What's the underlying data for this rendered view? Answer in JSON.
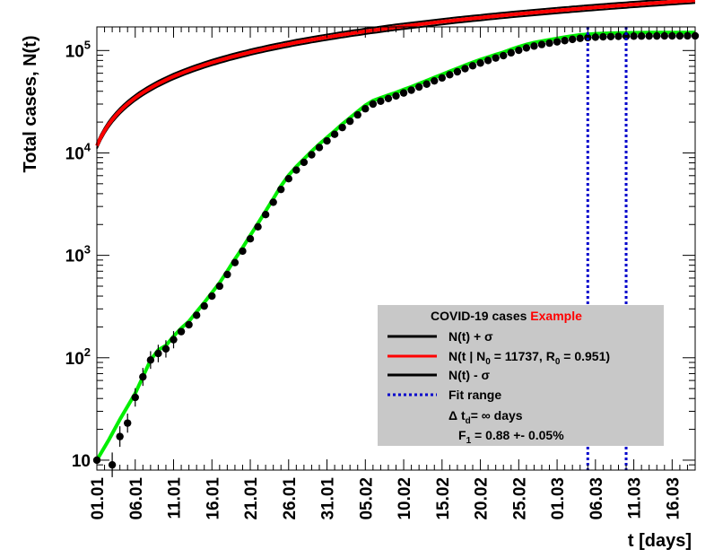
{
  "chart_data": {
    "type": "scatter",
    "y_scale": "log",
    "ylim": [
      8,
      170000
    ],
    "xlabel": "t [days]",
    "ylabel": "Total cases, N(t)",
    "x_tick_labels": [
      "01.01",
      "06.01",
      "11.01",
      "16.01",
      "21.01",
      "26.01",
      "31.01",
      "05.02",
      "10.02",
      "15.02",
      "20.02",
      "25.02",
      "01.03",
      "06.03",
      "11.03",
      "16.03"
    ],
    "y_tick_labels": [
      {
        "value": 10,
        "base": "10",
        "exp": ""
      },
      {
        "value": 100,
        "base": "10",
        "exp": "2"
      },
      {
        "value": 1000,
        "base": "10",
        "exp": "3"
      },
      {
        "value": 10000,
        "base": "10",
        "exp": "4"
      },
      {
        "value": 100000,
        "base": "10",
        "exp": "5"
      }
    ],
    "legend": {
      "title": "COVID-19 cases",
      "title_highlight": "Example",
      "entries": [
        {
          "kind": "line",
          "color": "#000000",
          "label": "N(t) + σ"
        },
        {
          "kind": "line",
          "color": "#ff0000",
          "label_pre": "N(t | N",
          "label_sub": "0",
          "label_mid": " = 11737, R",
          "label_sub2": "0",
          "label_post": " =  0.951)"
        },
        {
          "kind": "line",
          "color": "#000000",
          "label": "N(t) - σ"
        },
        {
          "kind": "dotted",
          "color": "#0000cc",
          "label": "Fit range"
        }
      ],
      "note1": {
        "pre": "Δ t",
        "sub": "d",
        "post": "= ∞ days"
      },
      "note2": {
        "pre": "F",
        "sub": "1",
        "post": " =  0.88 +- 0.05%"
      }
    },
    "fit_range": [
      64,
      69
    ],
    "model_curve": {
      "name": "N(t | N0 = 11737, R0 = 0.951)",
      "color": "#ff0000",
      "N0": 11737
    },
    "green_curve": {
      "color": "#00ee00"
    },
    "data_points": [
      {
        "day": 0,
        "value": 10
      },
      {
        "day": 2,
        "value": 9
      },
      {
        "day": 3,
        "value": 17
      },
      {
        "day": 4,
        "value": 23
      },
      {
        "day": 5,
        "value": 41
      },
      {
        "day": 6,
        "value": 65
      },
      {
        "day": 7,
        "value": 95
      },
      {
        "day": 8,
        "value": 110
      },
      {
        "day": 9,
        "value": 122
      },
      {
        "day": 10,
        "value": 150
      },
      {
        "day": 11,
        "value": 180
      },
      {
        "day": 12,
        "value": 210
      },
      {
        "day": 13,
        "value": 260
      },
      {
        "day": 14,
        "value": 320
      },
      {
        "day": 15,
        "value": 400
      },
      {
        "day": 16,
        "value": 500
      },
      {
        "day": 17,
        "value": 650
      },
      {
        "day": 18,
        "value": 850
      },
      {
        "day": 19,
        "value": 1100
      },
      {
        "day": 20,
        "value": 1450
      },
      {
        "day": 21,
        "value": 1900
      },
      {
        "day": 22,
        "value": 2500
      },
      {
        "day": 23,
        "value": 3300
      },
      {
        "day": 24,
        "value": 4400
      },
      {
        "day": 25,
        "value": 5600
      },
      {
        "day": 26,
        "value": 6800
      },
      {
        "day": 27,
        "value": 8100
      },
      {
        "day": 28,
        "value": 9600
      },
      {
        "day": 29,
        "value": 11300
      },
      {
        "day": 30,
        "value": 13100
      },
      {
        "day": 31,
        "value": 15200
      },
      {
        "day": 32,
        "value": 17700
      },
      {
        "day": 33,
        "value": 20400
      },
      {
        "day": 34,
        "value": 23500
      },
      {
        "day": 35,
        "value": 27000
      },
      {
        "day": 36,
        "value": 30000
      },
      {
        "day": 37,
        "value": 32000
      },
      {
        "day": 38,
        "value": 34000
      },
      {
        "day": 39,
        "value": 36000
      },
      {
        "day": 40,
        "value": 38500
      },
      {
        "day": 41,
        "value": 41000
      },
      {
        "day": 42,
        "value": 44000
      },
      {
        "day": 43,
        "value": 47000
      },
      {
        "day": 44,
        "value": 50500
      },
      {
        "day": 45,
        "value": 54000
      },
      {
        "day": 46,
        "value": 58000
      },
      {
        "day": 47,
        "value": 62000
      },
      {
        "day": 48,
        "value": 66500
      },
      {
        "day": 49,
        "value": 71000
      },
      {
        "day": 50,
        "value": 75500
      },
      {
        "day": 51,
        "value": 80000
      },
      {
        "day": 52,
        "value": 84500
      },
      {
        "day": 53,
        "value": 89000
      },
      {
        "day": 54,
        "value": 95000
      },
      {
        "day": 55,
        "value": 100500
      },
      {
        "day": 56,
        "value": 106000
      },
      {
        "day": 57,
        "value": 110500
      },
      {
        "day": 58,
        "value": 114500
      },
      {
        "day": 59,
        "value": 118000
      },
      {
        "day": 60,
        "value": 121500
      },
      {
        "day": 61,
        "value": 125000
      },
      {
        "day": 62,
        "value": 128500
      },
      {
        "day": 63,
        "value": 131500
      },
      {
        "day": 64,
        "value": 133500
      },
      {
        "day": 65,
        "value": 135000
      },
      {
        "day": 66,
        "value": 136000
      },
      {
        "day": 67,
        "value": 136800
      },
      {
        "day": 68,
        "value": 137400
      },
      {
        "day": 69,
        "value": 137800
      },
      {
        "day": 70,
        "value": 138100
      },
      {
        "day": 71,
        "value": 138300
      },
      {
        "day": 72,
        "value": 138500
      },
      {
        "day": 73,
        "value": 138600
      },
      {
        "day": 74,
        "value": 138700
      },
      {
        "day": 75,
        "value": 138800
      },
      {
        "day": 76,
        "value": 138900
      },
      {
        "day": 77,
        "value": 139000
      },
      {
        "day": 78,
        "value": 139000
      }
    ]
  }
}
